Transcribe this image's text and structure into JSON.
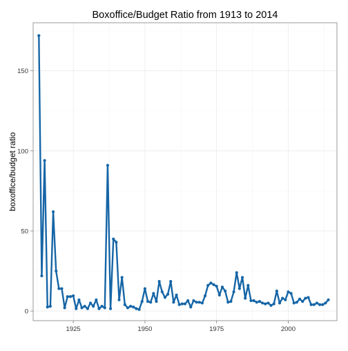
{
  "chart_data": {
    "type": "line",
    "title": "Boxoffice/Budget Ratio from 1913 to 2014",
    "xlabel": "",
    "ylabel": "boxoffice/budget ratio",
    "xlim": [
      1911,
      2017
    ],
    "ylim": [
      -6,
      180
    ],
    "x_ticks": [
      1925,
      1950,
      1975,
      2000
    ],
    "y_ticks": [
      0,
      50,
      100,
      150
    ],
    "grid": true,
    "legend": "none",
    "line_color": "#1565a6",
    "series": [
      {
        "x": [
          1913,
          1914,
          1915,
          1916,
          1917,
          1918,
          1919,
          1920,
          1921,
          1922,
          1923,
          1924,
          1925,
          1926,
          1927,
          1928,
          1929,
          1930,
          1931,
          1932,
          1933,
          1934,
          1935,
          1936,
          1937,
          1938,
          1939,
          1940,
          1941,
          1942,
          1943,
          1944,
          1945,
          1946,
          1947,
          1948,
          1949,
          1950,
          1951,
          1952,
          1953,
          1954,
          1955,
          1956,
          1957,
          1958,
          1959,
          1960,
          1961,
          1962,
          1963,
          1964,
          1965,
          1966,
          1967,
          1968,
          1969,
          1970,
          1971,
          1972,
          1973,
          1974,
          1975,
          1976,
          1977,
          1978,
          1979,
          1980,
          1981,
          1982,
          1983,
          1984,
          1985,
          1986,
          1987,
          1988,
          1989,
          1990,
          1991,
          1992,
          1993,
          1994,
          1995,
          1996,
          1997,
          1998,
          1999,
          2000,
          2001,
          2002,
          2003,
          2004,
          2005,
          2006,
          2007,
          2008,
          2009,
          2010,
          2011,
          2012,
          2013,
          2014
        ],
        "y": [
          172,
          22,
          94,
          2.5,
          3,
          62,
          25,
          14,
          14,
          2,
          9,
          9,
          9.5,
          1.5,
          7,
          2,
          3,
          1.5,
          5,
          3,
          7,
          1.5,
          3,
          2,
          91,
          1.5,
          45,
          43,
          7,
          21,
          4,
          2,
          3,
          2.5,
          1.5,
          1,
          6,
          14,
          6,
          5.5,
          11,
          6,
          18.5,
          12,
          8.5,
          10.5,
          18.5,
          5.5,
          10,
          4,
          4.5,
          4.5,
          6.5,
          2.5,
          6.5,
          5.5,
          5.5,
          5,
          9.5,
          16,
          17.5,
          16.5,
          15.5,
          10,
          15,
          12.5,
          5.5,
          6,
          12,
          24,
          14,
          21,
          8,
          16,
          6.5,
          6.5,
          5.5,
          6,
          5,
          4.5,
          5,
          3.5,
          4.5,
          12.5,
          5,
          8,
          7,
          12,
          11,
          5,
          5.5,
          7.5,
          6,
          8,
          8.5,
          4,
          4,
          5,
          4,
          4,
          5,
          7
        ]
      }
    ]
  }
}
